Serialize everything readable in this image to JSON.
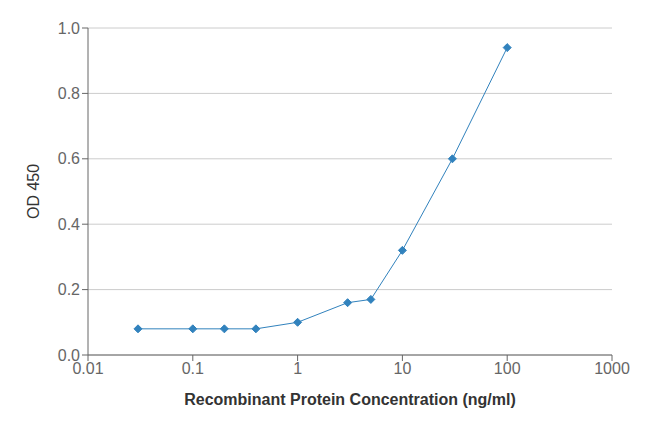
{
  "chart_data": {
    "type": "line",
    "xlabel": "Recombinant Protein Concentration (ng/ml)",
    "ylabel": "OD 450",
    "x": [
      0.03,
      0.1,
      0.2,
      0.4,
      1.0,
      3.0,
      5.0,
      10.0,
      30.0,
      100.0
    ],
    "values": [
      0.08,
      0.08,
      0.08,
      0.08,
      0.1,
      0.16,
      0.17,
      0.32,
      0.6,
      0.94
    ],
    "xlim": [
      0.01,
      1000
    ],
    "ylim": [
      0.0,
      1.0
    ],
    "xticks": [
      0.01,
      0.1,
      1,
      10,
      100,
      1000
    ],
    "yticks": [
      {
        "value": 0.0,
        "label": "0.0"
      },
      0.2,
      0.4,
      0.6,
      0.8,
      {
        "value": 1.0,
        "label": "1.0"
      }
    ],
    "log": "x",
    "grid": true,
    "marker": "diamond"
  }
}
